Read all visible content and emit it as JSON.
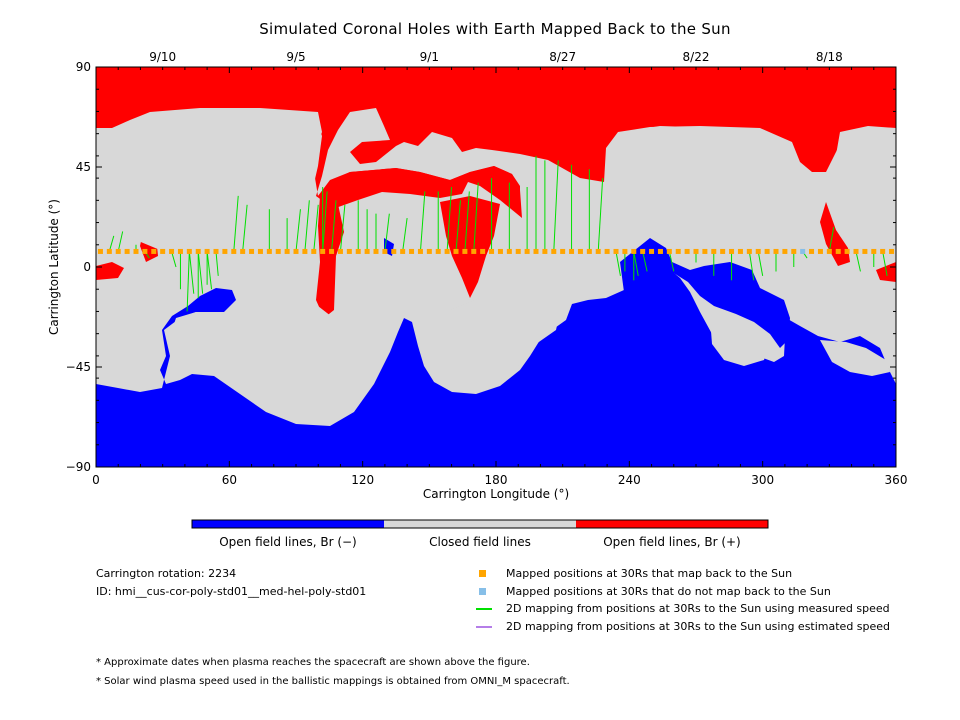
{
  "title": "Simulated Coronal Holes with Earth Mapped Back to the Sun",
  "colors": {
    "open_negative": "#0000ff",
    "closed": "#d8d8d8",
    "open_positive": "#ff0000",
    "mapped_back": "#ffa500",
    "not_mapped_back": "#87bfe8",
    "measured_speed": "#00e000",
    "estimated_speed": "#b57ee8"
  },
  "chart_data": {
    "type": "heatmap",
    "title": "Simulated Coronal Holes with Earth Mapped Back to the Sun",
    "xlabel": "Carrington Longitude (°)",
    "ylabel": "Carrington Latitude (°)",
    "xlim": [
      0,
      360
    ],
    "ylim": [
      -90,
      90
    ],
    "x_ticks": [
      0,
      60,
      120,
      180,
      240,
      300,
      360
    ],
    "y_ticks": [
      90,
      45,
      0,
      -45,
      -90
    ],
    "y_tick_labels": [
      "90",
      "45",
      "0",
      "−45",
      "−90"
    ],
    "top_axis_dates": [
      {
        "label": "9/10",
        "lon": 30
      },
      {
        "label": "9/5",
        "lon": 90
      },
      {
        "label": "9/1",
        "lon": 150
      },
      {
        "label": "8/27",
        "lon": 210
      },
      {
        "label": "8/22",
        "lon": 270
      },
      {
        "label": "8/18",
        "lon": 330
      }
    ],
    "colorbar_categories": [
      "Open field lines, Br (−)",
      "Closed field lines",
      "Open field lines, Br (+)"
    ],
    "mapped_latitude": 7,
    "mapped_points_lon": [
      2,
      6,
      10,
      14,
      18,
      22,
      26,
      30,
      34,
      38,
      42,
      46,
      50,
      54,
      58,
      62,
      66,
      70,
      74,
      78,
      82,
      86,
      90,
      94,
      98,
      102,
      106,
      110,
      114,
      118,
      122,
      126,
      130,
      134,
      138,
      142,
      146,
      150,
      154,
      158,
      162,
      166,
      170,
      174,
      178,
      182,
      186,
      190,
      194,
      198,
      202,
      206,
      210,
      214,
      218,
      222,
      226,
      230,
      234,
      238,
      242,
      246,
      250,
      254,
      258,
      262,
      266,
      270,
      274,
      278,
      282,
      286,
      290,
      294,
      298,
      302,
      306,
      310,
      314,
      318,
      322,
      326,
      330,
      334,
      338,
      342,
      346,
      350,
      354,
      358
    ],
    "unmapped_points_lon": [
      318
    ],
    "measured_speed_links": [
      [
        8,
        14
      ],
      [
        12,
        16
      ],
      [
        18,
        10
      ],
      [
        24,
        4
      ],
      [
        36,
        0
      ],
      [
        38,
        -10
      ],
      [
        41,
        -20
      ],
      [
        44,
        -12
      ],
      [
        46,
        -14
      ],
      [
        48,
        -12
      ],
      [
        50,
        -8
      ],
      [
        52,
        -10
      ],
      [
        55,
        -4
      ],
      [
        64,
        32
      ],
      [
        68,
        28
      ],
      [
        78,
        26
      ],
      [
        86,
        22
      ],
      [
        92,
        26
      ],
      [
        96,
        30
      ],
      [
        100,
        28
      ],
      [
        102,
        36
      ],
      [
        104,
        34
      ],
      [
        108,
        30
      ],
      [
        112,
        28
      ],
      [
        118,
        30
      ],
      [
        122,
        26
      ],
      [
        126,
        24
      ],
      [
        132,
        24
      ],
      [
        140,
        22
      ],
      [
        148,
        34
      ],
      [
        154,
        34
      ],
      [
        160,
        36
      ],
      [
        164,
        30
      ],
      [
        168,
        34
      ],
      [
        172,
        38
      ],
      [
        178,
        40
      ],
      [
        186,
        38
      ],
      [
        194,
        36
      ],
      [
        198,
        50
      ],
      [
        202,
        48
      ],
      [
        208,
        48
      ],
      [
        214,
        46
      ],
      [
        222,
        44
      ],
      [
        228,
        40
      ],
      [
        236,
        -4
      ],
      [
        238,
        -2
      ],
      [
        242,
        -6
      ],
      [
        244,
        -4
      ],
      [
        248,
        -2
      ],
      [
        260,
        -2
      ],
      [
        270,
        2
      ],
      [
        278,
        -4
      ],
      [
        286,
        -6
      ],
      [
        296,
        -6
      ],
      [
        300,
        -4
      ],
      [
        306,
        -2
      ],
      [
        314,
        0
      ],
      [
        320,
        4
      ],
      [
        332,
        18
      ],
      [
        344,
        -2
      ],
      [
        350,
        0
      ],
      [
        356,
        -4
      ]
    ],
    "estimated_speed_links": []
  },
  "info": {
    "rotation": "Carrington rotation: 2234",
    "id": "ID: hmi__cus-cor-poly-std01__med-hel-poly-std01"
  },
  "legend": [
    {
      "key": "mapped_back",
      "kind": "square",
      "label": "Mapped positions at 30Rs that map back to the Sun"
    },
    {
      "key": "not_mapped_back",
      "kind": "square",
      "label": "Mapped positions at 30Rs that do not map back to the Sun"
    },
    {
      "key": "measured_speed",
      "kind": "line",
      "label": "2D mapping from positions at 30Rs to the Sun using measured speed"
    },
    {
      "key": "estimated_speed",
      "kind": "line",
      "label": "2D mapping from positions at 30Rs to the Sun using estimated speed"
    }
  ],
  "notes": [
    "* Approximate dates when plasma reaches the spacecraft are shown above the figure.",
    "* Solar wind plasma speed used in the ballistic mappings is obtained from OMNI_M spacecraft."
  ]
}
